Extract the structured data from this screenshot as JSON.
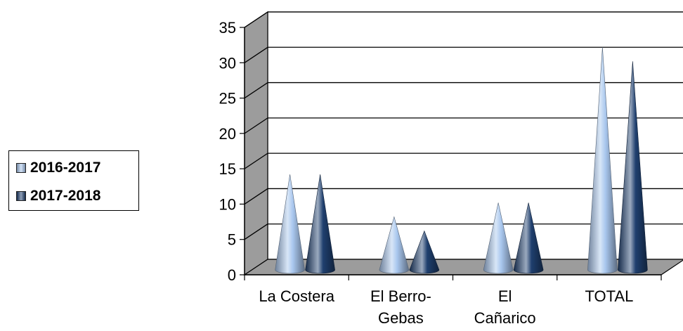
{
  "chart_data": {
    "type": "bar",
    "categories": [
      [
        "La Costera"
      ],
      [
        "El Berro-",
        "Gebas"
      ],
      [
        "El",
        "Cañarico"
      ],
      [
        "TOTAL"
      ]
    ],
    "series": [
      {
        "name": "2016-2017",
        "values": [
          14,
          8,
          10,
          32
        ],
        "color": "#a9c7ee"
      },
      {
        "name": "2017-2018",
        "values": [
          14,
          6,
          10,
          30
        ],
        "color": "#1f3f6e"
      }
    ],
    "ylim": [
      0,
      35
    ],
    "yticks": [
      0,
      5,
      10,
      15,
      20,
      25,
      30,
      35
    ],
    "grid": true,
    "legend_position": "left",
    "mark_shape": "cone",
    "three_d": true
  }
}
